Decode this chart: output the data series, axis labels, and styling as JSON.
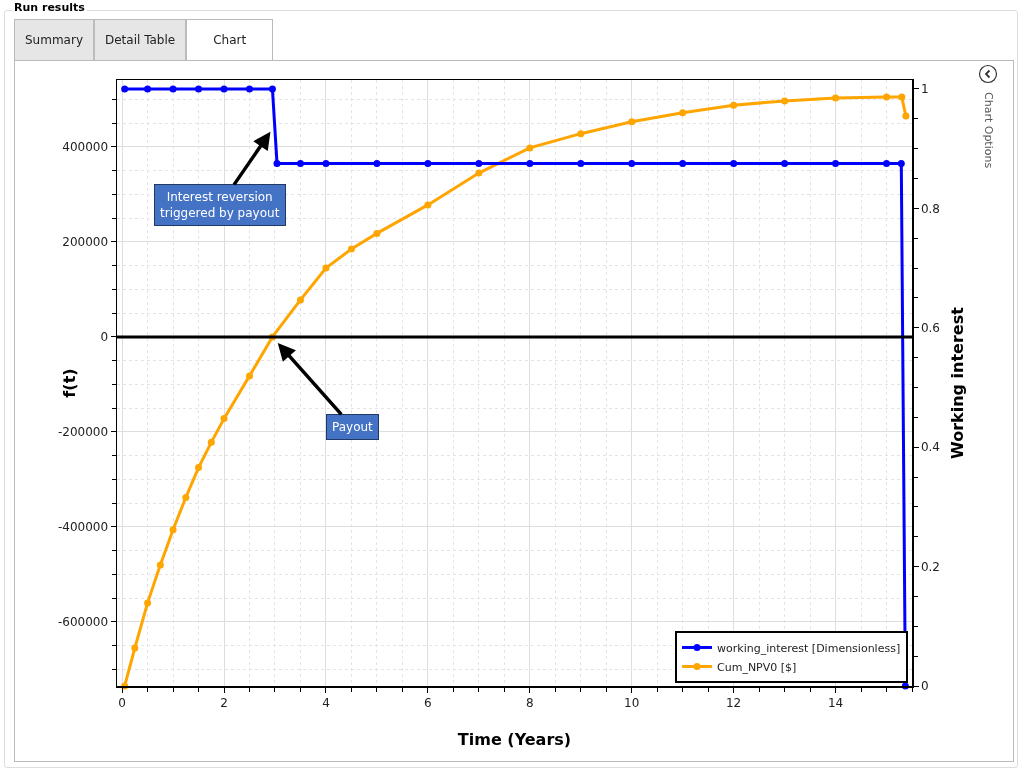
{
  "chart_data": {
    "type": "line",
    "xlabel": "Time (Years)",
    "ylabel": "f(t)",
    "y2label": "Working interest",
    "xlim": [
      -0.1,
      15.5
    ],
    "xticks": [
      0,
      2,
      4,
      6,
      8,
      10,
      12,
      14
    ],
    "ylim": [
      -735000,
      541000
    ],
    "yticks": [
      -600000,
      -400000,
      -200000,
      0,
      200000,
      400000
    ],
    "y2lim": [
      0,
      1.015
    ],
    "y2ticks": [
      0,
      0.2,
      0.4,
      0.6,
      0.8,
      1
    ],
    "grid": true,
    "legend": "bottom right",
    "marker": "circle",
    "line_style": "solid",
    "ref_lines": [
      {
        "axis": "y",
        "value": 0,
        "color": "#000000"
      }
    ],
    "series": [
      {
        "name": "working_interest [Dimensionless]",
        "color": "#0000ff",
        "axis": "y2",
        "x": [
          0.05,
          0.5,
          1,
          1.5,
          2,
          2.5,
          2.95,
          3.04,
          3.5,
          4,
          5,
          6,
          7,
          8,
          9,
          10,
          11,
          12,
          13,
          14,
          15,
          15.29,
          15.37
        ],
        "values": [
          1,
          1,
          1,
          1,
          1,
          1,
          1,
          0.875,
          0.875,
          0.875,
          0.875,
          0.875,
          0.875,
          0.875,
          0.875,
          0.875,
          0.875,
          0.875,
          0.875,
          0.875,
          0.875,
          0.875,
          0
        ]
      },
      {
        "name": "Cum_NPV0 [$]",
        "color": "#ffa500",
        "x": [
          0.05,
          0.25,
          0.5,
          0.75,
          1,
          1.25,
          1.5,
          1.75,
          2,
          2.5,
          2.95,
          3.5,
          4,
          4.5,
          5,
          6,
          7,
          8,
          9,
          10,
          11,
          12,
          13,
          14,
          15,
          15.3,
          15.38
        ],
        "values": [
          -735000,
          -655000,
          -560000,
          -480000,
          -406000,
          -338000,
          -275000,
          -222000,
          -172000,
          -82000,
          0,
          78000,
          145000,
          185000,
          218000,
          278000,
          345000,
          398000,
          428000,
          453000,
          472000,
          488000,
          497000,
          503000,
          505000,
          505000,
          465000
        ]
      }
    ],
    "annotations": [
      "Run results",
      "Summary",
      "Detail Table",
      "Chart",
      "Chart Options",
      {
        "text": "Interest reversion triggered by payout",
        "x": 3.0,
        "y": 446000
      },
      {
        "text": "Payout",
        "x": 2.95,
        "y": 0
      }
    ]
  }
}
